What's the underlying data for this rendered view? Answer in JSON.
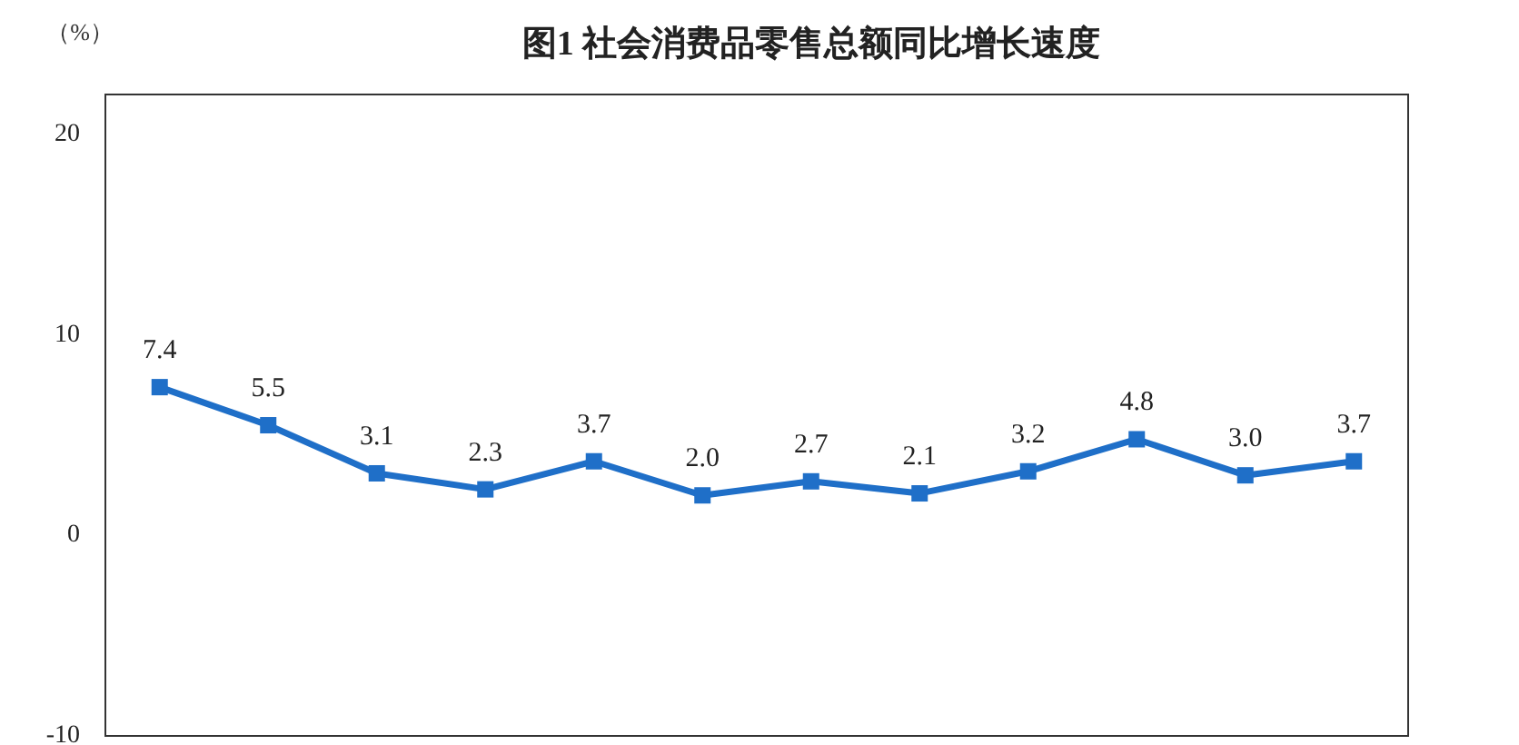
{
  "chart_data": {
    "type": "line",
    "title": "图1  社会消费品零售总额同比增长速度",
    "ylabel": "（%）",
    "categories": [
      null,
      null,
      null,
      null,
      null,
      null,
      null,
      null,
      null,
      null,
      null,
      null
    ],
    "series": [
      {
        "color": "#1f6fc8",
        "values": [
          7.4,
          5.5,
          3.1,
          2.3,
          3.7,
          2.0,
          2.7,
          2.1,
          3.2,
          4.8,
          3.0,
          3.7
        ],
        "value_labels": [
          "7.4",
          "5.5",
          "3.1",
          "2.3",
          "3.7",
          "2.0",
          "2.7",
          "2.1",
          "3.2",
          "4.8",
          "3.0",
          "3.7"
        ]
      }
    ],
    "ylim": [
      -10,
      22
    ],
    "yticks": [
      -10,
      0,
      10,
      20
    ],
    "marker": "square",
    "line_style": "solid",
    "tick_labels": "y"
  }
}
